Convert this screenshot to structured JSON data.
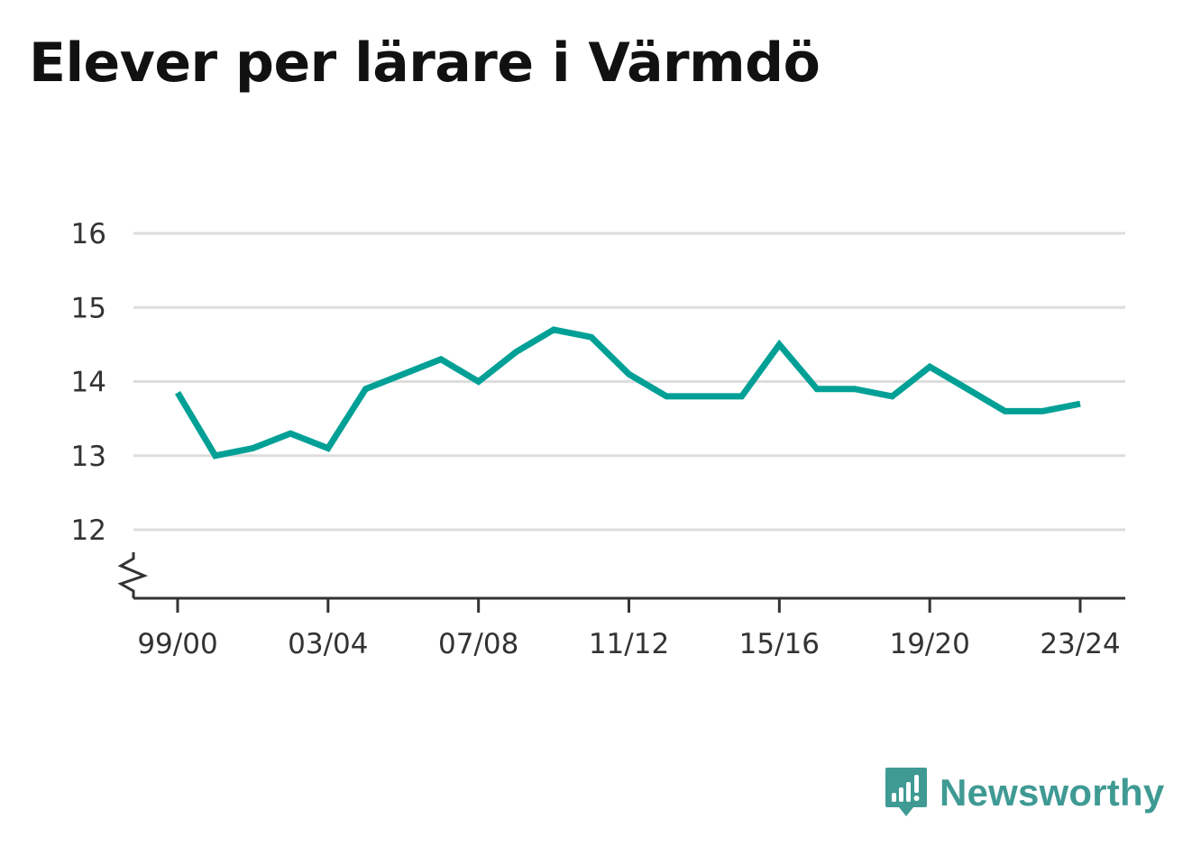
{
  "title": "Elever per lärare i Värmdö",
  "brand": {
    "name": "Newsworthy",
    "color": "#3f9a94",
    "icon": "newsworthy-logo-icon"
  },
  "chart_data": {
    "type": "line",
    "title": "Elever per lärare i Värmdö",
    "xlabel": "",
    "ylabel": "",
    "x": [
      "99/00",
      "00/01",
      "01/02",
      "02/03",
      "03/04",
      "04/05",
      "05/06",
      "06/07",
      "07/08",
      "08/09",
      "09/10",
      "10/11",
      "11/12",
      "12/13",
      "13/14",
      "14/15",
      "15/16",
      "16/17",
      "17/18",
      "18/19",
      "19/20",
      "20/21",
      "21/22",
      "22/23",
      "23/24"
    ],
    "x_tick_labels": [
      "99/00",
      "03/04",
      "07/08",
      "11/12",
      "15/16",
      "19/20",
      "23/24"
    ],
    "y_ticks": [
      12,
      13,
      14,
      15,
      16
    ],
    "ylim": [
      11.1,
      16.1
    ],
    "axis_break": true,
    "grid": true,
    "series": [
      {
        "values": [
          13.85,
          13.0,
          13.1,
          13.3,
          13.1,
          13.9,
          14.1,
          14.3,
          14.0,
          14.4,
          14.7,
          14.6,
          14.1,
          13.8,
          13.8,
          13.8,
          14.5,
          13.9,
          13.9,
          13.8,
          14.2,
          13.9,
          13.6,
          13.6,
          13.7
        ],
        "color": "#00a096"
      }
    ]
  }
}
